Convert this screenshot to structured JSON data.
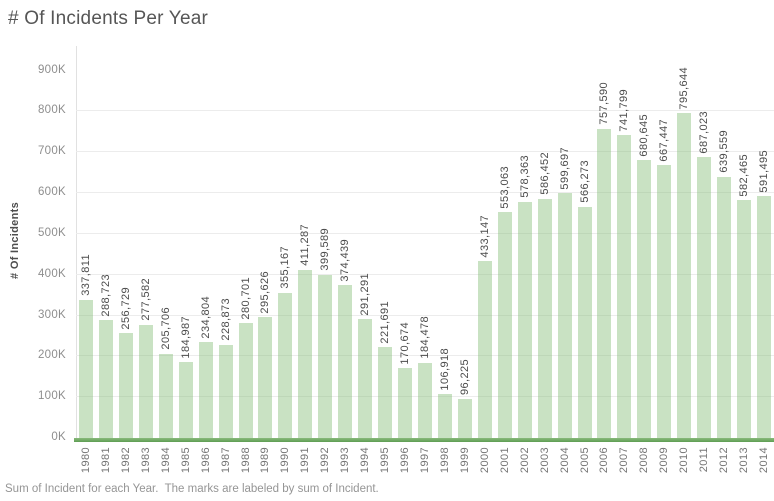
{
  "chart_data": {
    "type": "bar",
    "title": "# Of Incidents Per Year",
    "ylabel": "# Of Incidents",
    "xlabel": "",
    "caption": "Sum of Incident for each Year.  The marks are labeled by sum of Incident.",
    "categories": [
      "1980",
      "1981",
      "1982",
      "1983",
      "1984",
      "1985",
      "1986",
      "1987",
      "1988",
      "1989",
      "1990",
      "1991",
      "1992",
      "1993",
      "1994",
      "1995",
      "1996",
      "1997",
      "1998",
      "1999",
      "2000",
      "2001",
      "2002",
      "2003",
      "2004",
      "2005",
      "2006",
      "2007",
      "2008",
      "2009",
      "2010",
      "2011",
      "2012",
      "2013",
      "2014"
    ],
    "values": [
      337811,
      288723,
      256729,
      277582,
      205706,
      184987,
      234804,
      228873,
      280701,
      295626,
      355167,
      411287,
      399589,
      374439,
      291291,
      221691,
      170674,
      184478,
      106918,
      96225,
      433147,
      553063,
      578363,
      586452,
      599697,
      566273,
      757590,
      741799,
      680645,
      667447,
      795644,
      687023,
      639559,
      582465,
      591495
    ],
    "value_labels_shown": true,
    "ylim": [
      0,
      960000
    ],
    "ytick_interval": 100000,
    "ytick_labels": [
      "0K",
      "100K",
      "200K",
      "300K",
      "400K",
      "500K",
      "600K",
      "700K",
      "800K",
      "900K"
    ],
    "grid": "horizontal",
    "legend": "none",
    "colors": {
      "bar_fill": "#c9e2c3",
      "bar_fill_rgba": "rgba(135,190,122,0.45)",
      "baseline_green": "#5d9d52",
      "gridline": "#ececec",
      "title_text": "#565656",
      "value_label_text": "#4c4c4c",
      "axis_tick_text": "#8e8e8e",
      "year_tick_text": "#757575",
      "caption_text": "#959595"
    }
  }
}
